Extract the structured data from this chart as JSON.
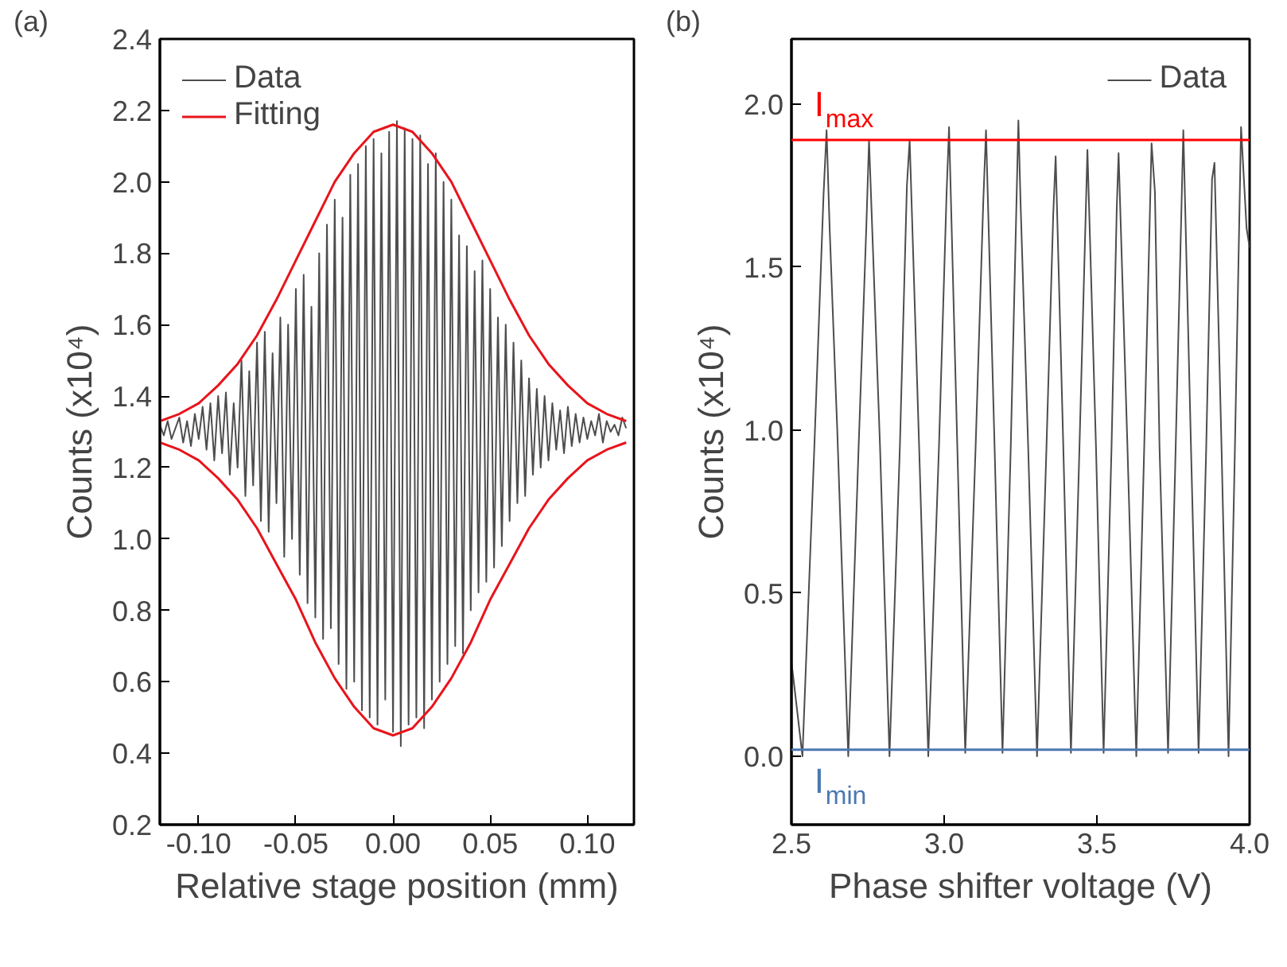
{
  "chart_data": [
    {
      "type": "line",
      "annotations": [
        "(a)"
      ],
      "xlabel": "Relative stage position (mm)",
      "ylabel": "Counts (x10⁴)",
      "xlim": [
        -0.12,
        0.124
      ],
      "ylim": [
        0.2,
        2.4
      ],
      "xticks": [
        {
          "value": -0.1,
          "label": "-0.10"
        },
        {
          "value": -0.05,
          "label": "-0.05"
        },
        {
          "value": 0,
          "label": "0.00"
        },
        {
          "value": 0.05,
          "label": "0.05"
        },
        {
          "value": 0.1,
          "label": "0.10"
        }
      ],
      "yticks": [
        {
          "value": 0.2,
          "label": "0.2"
        },
        {
          "value": 0.4,
          "label": "0.4"
        },
        {
          "value": 0.6,
          "label": "0.6"
        },
        {
          "value": 0.8,
          "label": "0.8"
        },
        {
          "value": 1,
          "label": "1.0"
        },
        {
          "value": 1.2,
          "label": "1.2"
        },
        {
          "value": 1.4,
          "label": "1.4"
        },
        {
          "value": 1.6,
          "label": "1.6"
        },
        {
          "value": 1.8,
          "label": "1.8"
        },
        {
          "value": 2,
          "label": "2.0"
        },
        {
          "value": 2.2,
          "label": "2.2"
        },
        {
          "value": 2.4,
          "label": "2.4"
        }
      ],
      "grid": false,
      "legend": "top left",
      "series": [
        {
          "name": "Data",
          "color": "#4d4d4d",
          "x": [
            -0.12,
            -0.118,
            -0.116,
            -0.114,
            -0.112,
            -0.11,
            -0.108,
            -0.106,
            -0.104,
            -0.102,
            -0.1,
            -0.098,
            -0.096,
            -0.094,
            -0.092,
            -0.09,
            -0.088,
            -0.086,
            -0.084,
            -0.082,
            -0.08,
            -0.078,
            -0.076,
            -0.074,
            -0.072,
            -0.07,
            -0.068,
            -0.066,
            -0.064,
            -0.062,
            -0.06,
            -0.058,
            -0.056,
            -0.054,
            -0.052,
            -0.05,
            -0.048,
            -0.046,
            -0.044,
            -0.042,
            -0.04,
            -0.038,
            -0.036,
            -0.034,
            -0.032,
            -0.03,
            -0.028,
            -0.026,
            -0.024,
            -0.022,
            -0.02,
            -0.018,
            -0.016,
            -0.014,
            -0.012,
            -0.01,
            -0.008,
            -0.006,
            -0.004,
            -0.002,
            0,
            0.002,
            0.004,
            0.006,
            0.008,
            0.01,
            0.012,
            0.014,
            0.016,
            0.018,
            0.02,
            0.022,
            0.024,
            0.026,
            0.028,
            0.03,
            0.032,
            0.034,
            0.036,
            0.038,
            0.04,
            0.042,
            0.044,
            0.046,
            0.048,
            0.05,
            0.052,
            0.054,
            0.056,
            0.058,
            0.06,
            0.062,
            0.064,
            0.066,
            0.068,
            0.07,
            0.072,
            0.074,
            0.076,
            0.078,
            0.08,
            0.082,
            0.084,
            0.086,
            0.088,
            0.09,
            0.092,
            0.094,
            0.096,
            0.098,
            0.1,
            0.102,
            0.104,
            0.106,
            0.108,
            0.11,
            0.112,
            0.114,
            0.116,
            0.118,
            0.12
          ],
          "values": [
            1.32,
            1.29,
            1.33,
            1.28,
            1.31,
            1.34,
            1.27,
            1.33,
            1.26,
            1.35,
            1.28,
            1.37,
            1.25,
            1.38,
            1.22,
            1.4,
            1.24,
            1.41,
            1.18,
            1.38,
            1.2,
            1.5,
            1.12,
            1.47,
            1.15,
            1.55,
            1.05,
            1.58,
            1.02,
            1.52,
            1.1,
            1.62,
            0.95,
            1.6,
            1.0,
            1.7,
            0.9,
            1.74,
            0.82,
            1.65,
            0.78,
            1.8,
            0.72,
            1.88,
            0.75,
            1.95,
            0.65,
            1.9,
            0.58,
            2.02,
            0.6,
            2.05,
            0.52,
            2.1,
            0.5,
            2.12,
            0.48,
            2.08,
            0.55,
            2.14,
            0.46,
            2.17,
            0.42,
            2.15,
            0.48,
            2.12,
            0.5,
            2.13,
            0.47,
            2.05,
            0.55,
            2.08,
            0.6,
            2.0,
            0.65,
            1.95,
            0.7,
            1.85,
            0.68,
            1.82,
            0.8,
            1.75,
            0.85,
            1.78,
            0.88,
            1.7,
            0.92,
            1.62,
            0.98,
            1.6,
            1.05,
            1.55,
            1.1,
            1.5,
            1.12,
            1.45,
            1.18,
            1.42,
            1.2,
            1.4,
            1.22,
            1.38,
            1.25,
            1.36,
            1.24,
            1.37,
            1.26,
            1.35,
            1.27,
            1.34,
            1.28,
            1.33,
            1.29,
            1.35,
            1.27,
            1.33,
            1.3,
            1.32,
            1.29,
            1.34,
            1.31
          ]
        },
        {
          "name": "Fitting",
          "color": "#e8141b",
          "x": [
            -0.12,
            -0.11,
            -0.1,
            -0.09,
            -0.08,
            -0.07,
            -0.06,
            -0.05,
            -0.04,
            -0.03,
            -0.02,
            -0.01,
            0,
            0.01,
            0.02,
            0.03,
            0.04,
            0.05,
            0.06,
            0.07,
            0.08,
            0.09,
            0.1,
            0.11,
            0.12
          ],
          "values": [
            1.33,
            1.35,
            1.38,
            1.43,
            1.49,
            1.57,
            1.67,
            1.78,
            1.89,
            2.0,
            2.08,
            2.14,
            2.16,
            2.14,
            2.08,
            2.0,
            1.89,
            1.78,
            1.67,
            1.57,
            1.49,
            1.43,
            1.38,
            1.35,
            1.33
          ]
        },
        {
          "color": "#e8141b",
          "x": [
            -0.12,
            -0.11,
            -0.1,
            -0.09,
            -0.08,
            -0.07,
            -0.06,
            -0.05,
            -0.04,
            -0.03,
            -0.02,
            -0.01,
            0,
            0.01,
            0.02,
            0.03,
            0.04,
            0.05,
            0.06,
            0.07,
            0.08,
            0.09,
            0.1,
            0.11,
            0.12
          ],
          "values": [
            1.27,
            1.25,
            1.22,
            1.17,
            1.11,
            1.03,
            0.93,
            0.83,
            0.71,
            0.61,
            0.53,
            0.47,
            0.45,
            0.47,
            0.53,
            0.61,
            0.71,
            0.83,
            0.93,
            1.03,
            1.11,
            1.17,
            1.22,
            1.25,
            1.27
          ]
        }
      ]
    },
    {
      "type": "line",
      "annotations": [
        "(b)"
      ],
      "xlabel": "Phase shifter voltage (V)",
      "ylabel": "Counts (x10⁴)",
      "xlim": [
        2.5,
        4.0
      ],
      "ylim": [
        -0.21,
        2.2
      ],
      "xticks": [
        2.5,
        {
          "value": 3,
          "label": "3.0"
        },
        3.5,
        {
          "value": 4,
          "label": "4.0"
        }
      ],
      "yticks": [
        {
          "value": 0,
          "label": "0.0"
        },
        0.5,
        {
          "value": 1,
          "label": "1.0"
        },
        1.5,
        {
          "value": 2,
          "label": "2.0"
        }
      ],
      "grid": false,
      "legend": "top right",
      "ref_lines": [
        {
          "axis": "y",
          "value": 1.89,
          "label": "I$_{max}$",
          "color": "#ff0000"
        },
        {
          "axis": "y",
          "value": 0.02,
          "label": "I$_{min}$",
          "color": "#4a78b0"
        }
      ],
      "series": [
        {
          "name": "Data",
          "color": "#4d4d4d",
          "x": [
            2.5,
            2.536,
            2.575,
            2.605,
            2.615,
            2.625,
            2.65,
            2.686,
            2.72,
            2.745,
            2.754,
            2.79,
            2.821,
            2.855,
            2.878,
            2.887,
            2.918,
            2.948,
            2.983,
            3.008,
            3.016,
            3.043,
            3.069,
            3.103,
            3.128,
            3.137,
            3.165,
            3.191,
            3.218,
            3.243,
            3.25,
            3.275,
            3.304,
            3.335,
            3.357,
            3.365,
            3.39,
            3.415,
            3.443,
            3.469,
            3.497,
            3.522,
            3.548,
            3.565,
            3.571,
            3.6,
            3.629,
            3.655,
            3.679,
            3.69,
            3.705,
            3.733,
            3.758,
            3.783,
            3.808,
            3.833,
            3.858,
            3.877,
            3.885,
            3.908,
            3.931,
            3.952,
            3.972,
            3.99,
            4.0
          ],
          "values": [
            0.29,
            0.0,
            0.95,
            1.72,
            1.92,
            1.62,
            1.0,
            0.0,
            0.95,
            1.62,
            1.89,
            0.95,
            0.0,
            0.95,
            1.75,
            1.89,
            0.95,
            0.0,
            0.95,
            1.73,
            1.93,
            0.95,
            0.01,
            0.95,
            1.7,
            1.92,
            0.95,
            0.01,
            0.95,
            1.95,
            1.7,
            0.95,
            0.0,
            0.95,
            1.66,
            1.84,
            0.95,
            0.01,
            0.95,
            1.86,
            0.95,
            0.01,
            0.95,
            1.68,
            1.85,
            0.95,
            0.0,
            0.95,
            1.88,
            1.73,
            0.95,
            0.01,
            0.95,
            1.92,
            0.95,
            0.01,
            0.95,
            1.77,
            1.82,
            0.95,
            0.0,
            0.95,
            1.93,
            1.62,
            1.56
          ]
        }
      ]
    }
  ]
}
